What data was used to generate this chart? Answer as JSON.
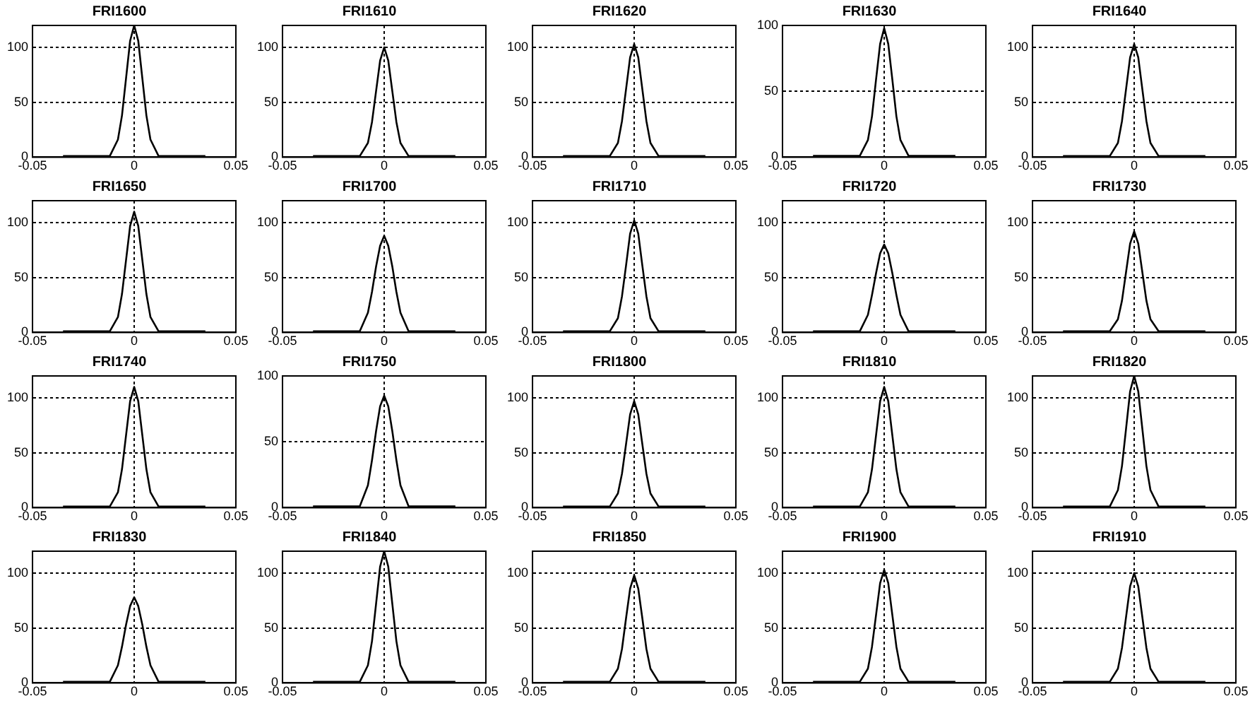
{
  "chart_data": [
    {
      "type": "line",
      "title": "FRI1600",
      "x": [
        -0.035,
        -0.012,
        -0.008,
        -0.006,
        -0.004,
        -0.002,
        0,
        0.002,
        0.004,
        0.006,
        0.008,
        0.012,
        0.035
      ],
      "values": [
        1,
        1,
        16,
        38,
        72,
        106,
        120,
        106,
        72,
        38,
        16,
        1,
        1
      ],
      "color": "#000000",
      "marker": "none",
      "xlim": [
        -0.05,
        0.05
      ],
      "xticks": [
        -0.05,
        0,
        0.05
      ],
      "ylim": [
        0,
        120
      ],
      "yticks": [
        0,
        50,
        100
      ],
      "grid": true
    },
    {
      "type": "line",
      "title": "FRI1610",
      "x": [
        -0.035,
        -0.012,
        -0.008,
        -0.006,
        -0.004,
        -0.002,
        0,
        0.002,
        0.004,
        0.006,
        0.008,
        0.012,
        0.035
      ],
      "values": [
        1,
        1,
        13,
        32,
        60,
        88,
        100,
        88,
        60,
        32,
        13,
        1,
        1
      ],
      "color": "#000000",
      "marker": "none",
      "xlim": [
        -0.05,
        0.05
      ],
      "xticks": [
        -0.05,
        0,
        0.05
      ],
      "ylim": [
        0,
        120
      ],
      "yticks": [
        0,
        50,
        100
      ],
      "grid": true
    },
    {
      "type": "line",
      "title": "FRI1620",
      "x": [
        -0.035,
        -0.012,
        -0.008,
        -0.006,
        -0.004,
        -0.002,
        0,
        0.002,
        0.004,
        0.006,
        0.008,
        0.012,
        0.035
      ],
      "values": [
        1,
        1,
        13,
        33,
        62,
        91,
        103,
        91,
        62,
        33,
        13,
        1,
        1
      ],
      "color": "#000000",
      "marker": "none",
      "xlim": [
        -0.05,
        0.05
      ],
      "xticks": [
        -0.05,
        0,
        0.05
      ],
      "ylim": [
        0,
        120
      ],
      "yticks": [
        0,
        50,
        100
      ],
      "grid": true
    },
    {
      "type": "line",
      "title": "FRI1630",
      "x": [
        -0.035,
        -0.012,
        -0.008,
        -0.006,
        -0.004,
        -0.002,
        0,
        0.002,
        0.004,
        0.006,
        0.008,
        0.012,
        0.035
      ],
      "values": [
        1,
        1,
        13,
        31,
        59,
        86,
        98,
        86,
        59,
        31,
        13,
        1,
        1
      ],
      "color": "#000000",
      "marker": "none",
      "xlim": [
        -0.05,
        0.05
      ],
      "xticks": [
        -0.05,
        0,
        0.05
      ],
      "ylim": [
        0,
        100
      ],
      "yticks": [
        0,
        50,
        100
      ],
      "grid": true
    },
    {
      "type": "line",
      "title": "FRI1640",
      "x": [
        -0.035,
        -0.012,
        -0.008,
        -0.006,
        -0.004,
        -0.002,
        0,
        0.002,
        0.004,
        0.006,
        0.008,
        0.012,
        0.035
      ],
      "values": [
        1,
        1,
        13,
        33,
        62,
        91,
        103,
        91,
        62,
        33,
        13,
        1,
        1
      ],
      "color": "#000000",
      "marker": "none",
      "xlim": [
        -0.05,
        0.05
      ],
      "xticks": [
        -0.05,
        0,
        0.05
      ],
      "ylim": [
        0,
        120
      ],
      "yticks": [
        0,
        50,
        100
      ],
      "grid": true
    },
    {
      "type": "line",
      "title": "FRI1650",
      "x": [
        -0.035,
        -0.012,
        -0.008,
        -0.006,
        -0.004,
        -0.002,
        0,
        0.002,
        0.004,
        0.006,
        0.008,
        0.012,
        0.035
      ],
      "values": [
        1,
        1,
        14,
        35,
        66,
        97,
        110,
        97,
        66,
        35,
        14,
        1,
        1
      ],
      "color": "#000000",
      "marker": "none",
      "xlim": [
        -0.05,
        0.05
      ],
      "xticks": [
        -0.05,
        0,
        0.05
      ],
      "ylim": [
        0,
        120
      ],
      "yticks": [
        0,
        50,
        100
      ],
      "grid": true
    },
    {
      "type": "line",
      "title": "FRI1700",
      "x": [
        -0.035,
        -0.012,
        -0.008,
        -0.006,
        -0.004,
        -0.002,
        0,
        0.002,
        0.004,
        0.006,
        0.008,
        0.012,
        0.035
      ],
      "values": [
        1,
        1,
        18,
        37,
        60,
        79,
        88,
        79,
        60,
        37,
        18,
        1,
        1
      ],
      "color": "#000000",
      "marker": "none",
      "xlim": [
        -0.05,
        0.05
      ],
      "xticks": [
        -0.05,
        0,
        0.05
      ],
      "ylim": [
        0,
        120
      ],
      "yticks": [
        0,
        50,
        100
      ],
      "grid": true
    },
    {
      "type": "line",
      "title": "FRI1710",
      "x": [
        -0.035,
        -0.012,
        -0.008,
        -0.006,
        -0.004,
        -0.002,
        0,
        0.002,
        0.004,
        0.006,
        0.008,
        0.012,
        0.035
      ],
      "values": [
        1,
        1,
        13,
        33,
        61,
        90,
        102,
        90,
        61,
        33,
        13,
        1,
        1
      ],
      "color": "#000000",
      "marker": "none",
      "xlim": [
        -0.05,
        0.05
      ],
      "xticks": [
        -0.05,
        0,
        0.05
      ],
      "ylim": [
        0,
        120
      ],
      "yticks": [
        0,
        50,
        100
      ],
      "grid": true
    },
    {
      "type": "line",
      "title": "FRI1720",
      "x": [
        -0.035,
        -0.012,
        -0.008,
        -0.006,
        -0.004,
        -0.002,
        0,
        0.002,
        0.004,
        0.006,
        0.008,
        0.012,
        0.035
      ],
      "values": [
        1,
        1,
        16,
        34,
        54,
        72,
        80,
        72,
        54,
        34,
        16,
        1,
        1
      ],
      "color": "#000000",
      "marker": "none",
      "xlim": [
        -0.05,
        0.05
      ],
      "xticks": [
        -0.05,
        0,
        0.05
      ],
      "ylim": [
        0,
        120
      ],
      "yticks": [
        0,
        50,
        100
      ],
      "grid": true
    },
    {
      "type": "line",
      "title": "FRI1730",
      "x": [
        -0.035,
        -0.012,
        -0.008,
        -0.006,
        -0.004,
        -0.002,
        0,
        0.002,
        0.004,
        0.006,
        0.008,
        0.012,
        0.035
      ],
      "values": [
        1,
        1,
        12,
        29,
        55,
        81,
        92,
        81,
        55,
        29,
        12,
        1,
        1
      ],
      "color": "#000000",
      "marker": "none",
      "xlim": [
        -0.05,
        0.05
      ],
      "xticks": [
        -0.05,
        0,
        0.05
      ],
      "ylim": [
        0,
        120
      ],
      "yticks": [
        0,
        50,
        100
      ],
      "grid": true
    },
    {
      "type": "line",
      "title": "FRI1740",
      "x": [
        -0.035,
        -0.012,
        -0.008,
        -0.006,
        -0.004,
        -0.002,
        0,
        0.002,
        0.004,
        0.006,
        0.008,
        0.012,
        0.035
      ],
      "values": [
        1,
        1,
        14,
        35,
        66,
        97,
        110,
        97,
        66,
        35,
        14,
        1,
        1
      ],
      "color": "#000000",
      "marker": "none",
      "xlim": [
        -0.05,
        0.05
      ],
      "xticks": [
        -0.05,
        0,
        0.05
      ],
      "ylim": [
        0,
        120
      ],
      "yticks": [
        0,
        50,
        100
      ],
      "grid": true
    },
    {
      "type": "line",
      "title": "FRI1750",
      "x": [
        -0.035,
        -0.012,
        -0.008,
        -0.006,
        -0.004,
        -0.002,
        0,
        0.002,
        0.004,
        0.006,
        0.008,
        0.012,
        0.035
      ],
      "values": [
        1,
        1,
        17,
        36,
        58,
        77,
        85,
        77,
        58,
        36,
        17,
        1,
        1
      ],
      "color": "#000000",
      "marker": "none",
      "xlim": [
        -0.05,
        0.05
      ],
      "xticks": [
        -0.05,
        0,
        0.05
      ],
      "ylim": [
        0,
        100
      ],
      "yticks": [
        0,
        50,
        100
      ],
      "grid": true
    },
    {
      "type": "line",
      "title": "FRI1800",
      "x": [
        -0.035,
        -0.012,
        -0.008,
        -0.006,
        -0.004,
        -0.002,
        0,
        0.002,
        0.004,
        0.006,
        0.008,
        0.012,
        0.035
      ],
      "values": [
        1,
        1,
        13,
        31,
        58,
        85,
        97,
        85,
        58,
        31,
        13,
        1,
        1
      ],
      "color": "#000000",
      "marker": "none",
      "xlim": [
        -0.05,
        0.05
      ],
      "xticks": [
        -0.05,
        0,
        0.05
      ],
      "ylim": [
        0,
        120
      ],
      "yticks": [
        0,
        50,
        100
      ],
      "grid": true
    },
    {
      "type": "line",
      "title": "FRI1810",
      "x": [
        -0.035,
        -0.012,
        -0.008,
        -0.006,
        -0.004,
        -0.002,
        0,
        0.002,
        0.004,
        0.006,
        0.008,
        0.012,
        0.035
      ],
      "values": [
        1,
        1,
        14,
        35,
        66,
        97,
        110,
        97,
        66,
        35,
        14,
        1,
        1
      ],
      "color": "#000000",
      "marker": "none",
      "xlim": [
        -0.05,
        0.05
      ],
      "xticks": [
        -0.05,
        0,
        0.05
      ],
      "ylim": [
        0,
        120
      ],
      "yticks": [
        0,
        50,
        100
      ],
      "grid": true
    },
    {
      "type": "line",
      "title": "FRI1820",
      "x": [
        -0.035,
        -0.012,
        -0.008,
        -0.006,
        -0.004,
        -0.002,
        0,
        0.002,
        0.004,
        0.006,
        0.008,
        0.012,
        0.035
      ],
      "values": [
        1,
        1,
        16,
        38,
        72,
        106,
        120,
        106,
        72,
        38,
        16,
        1,
        1
      ],
      "color": "#000000",
      "marker": "none",
      "xlim": [
        -0.05,
        0.05
      ],
      "xticks": [
        -0.05,
        0,
        0.05
      ],
      "ylim": [
        0,
        120
      ],
      "yticks": [
        0,
        50,
        100
      ],
      "grid": true
    },
    {
      "type": "line",
      "title": "FRI1830",
      "x": [
        -0.035,
        -0.012,
        -0.008,
        -0.006,
        -0.004,
        -0.002,
        0,
        0.002,
        0.004,
        0.006,
        0.008,
        0.012,
        0.035
      ],
      "values": [
        1,
        1,
        16,
        33,
        53,
        70,
        78,
        70,
        53,
        33,
        16,
        1,
        1
      ],
      "color": "#000000",
      "marker": "none",
      "xlim": [
        -0.05,
        0.05
      ],
      "xticks": [
        -0.05,
        0,
        0.05
      ],
      "ylim": [
        0,
        120
      ],
      "yticks": [
        0,
        50,
        100
      ],
      "grid": true
    },
    {
      "type": "line",
      "title": "FRI1840",
      "x": [
        -0.035,
        -0.012,
        -0.008,
        -0.006,
        -0.004,
        -0.002,
        0,
        0.002,
        0.004,
        0.006,
        0.008,
        0.012,
        0.035
      ],
      "values": [
        1,
        1,
        16,
        38,
        72,
        106,
        120,
        106,
        72,
        38,
        16,
        1,
        1
      ],
      "color": "#000000",
      "marker": "none",
      "xlim": [
        -0.05,
        0.05
      ],
      "xticks": [
        -0.05,
        0,
        0.05
      ],
      "ylim": [
        0,
        120
      ],
      "yticks": [
        0,
        50,
        100
      ],
      "grid": true
    },
    {
      "type": "line",
      "title": "FRI1850",
      "x": [
        -0.035,
        -0.012,
        -0.008,
        -0.006,
        -0.004,
        -0.002,
        0,
        0.002,
        0.004,
        0.006,
        0.008,
        0.012,
        0.035
      ],
      "values": [
        1,
        1,
        13,
        31,
        59,
        86,
        98,
        86,
        59,
        31,
        13,
        1,
        1
      ],
      "color": "#000000",
      "marker": "none",
      "xlim": [
        -0.05,
        0.05
      ],
      "xticks": [
        -0.05,
        0,
        0.05
      ],
      "ylim": [
        0,
        120
      ],
      "yticks": [
        0,
        50,
        100
      ],
      "grid": true
    },
    {
      "type": "line",
      "title": "FRI1900",
      "x": [
        -0.035,
        -0.012,
        -0.008,
        -0.006,
        -0.004,
        -0.002,
        0,
        0.002,
        0.004,
        0.006,
        0.008,
        0.012,
        0.035
      ],
      "values": [
        1,
        1,
        13,
        33,
        62,
        91,
        103,
        91,
        62,
        33,
        13,
        1,
        1
      ],
      "color": "#000000",
      "marker": "none",
      "xlim": [
        -0.05,
        0.05
      ],
      "xticks": [
        -0.05,
        0,
        0.05
      ],
      "ylim": [
        0,
        120
      ],
      "yticks": [
        0,
        50,
        100
      ],
      "grid": true
    },
    {
      "type": "line",
      "title": "FRI1910",
      "x": [
        -0.035,
        -0.012,
        -0.008,
        -0.006,
        -0.004,
        -0.002,
        0,
        0.002,
        0.004,
        0.006,
        0.008,
        0.012,
        0.035
      ],
      "values": [
        1,
        1,
        13,
        32,
        60,
        88,
        100,
        88,
        60,
        32,
        13,
        1,
        1
      ],
      "color": "#000000",
      "marker": "none",
      "xlim": [
        -0.05,
        0.05
      ],
      "xticks": [
        -0.05,
        0,
        0.05
      ],
      "ylim": [
        0,
        120
      ],
      "yticks": [
        0,
        50,
        100
      ],
      "grid": true
    }
  ]
}
